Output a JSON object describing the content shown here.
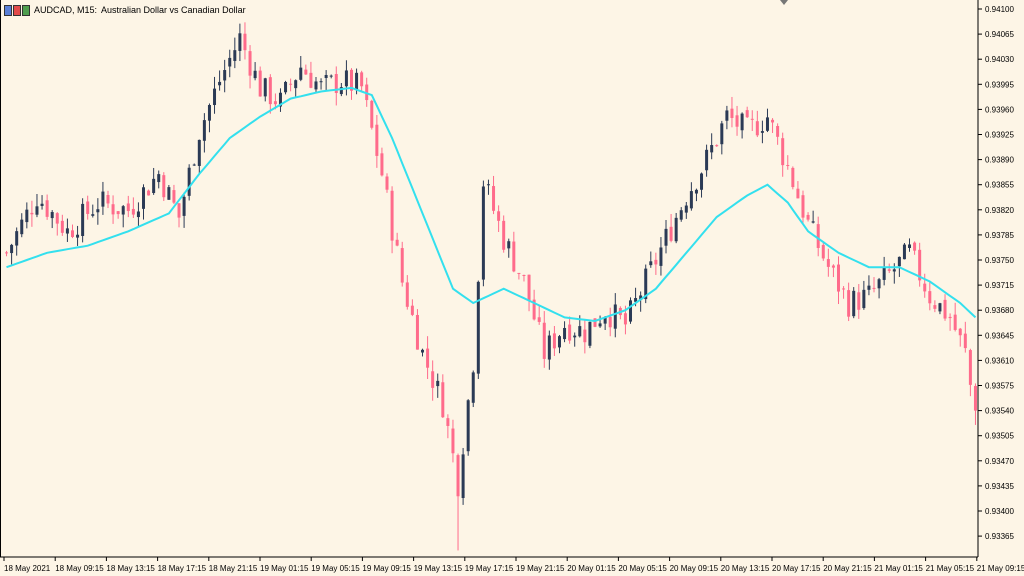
{
  "header": {
    "symbol": "AUDCAD, M15:",
    "description": "Australian Dollar vs Canadian Dollar"
  },
  "colors": {
    "background": "#fdf5e6",
    "bull": "#2b3a55",
    "bear": "#ff6b8b",
    "moving_average": "#33e0ee",
    "axis": "#000000"
  },
  "chart_data": {
    "type": "candlestick",
    "title": "",
    "grid": false,
    "ylim": [
      0.9333,
      0.94125
    ],
    "y_ticks": [
      "0.94100",
      "0.94065",
      "0.94030",
      "0.93995",
      "0.93960",
      "0.93925",
      "0.93890",
      "0.93855",
      "0.93820",
      "0.93785",
      "0.93750",
      "0.93715",
      "0.93680",
      "0.93645",
      "0.93610",
      "0.93575",
      "0.93540",
      "0.93505",
      "0.93470",
      "0.93435",
      "0.93400",
      "0.93365"
    ],
    "x_ticks": [
      "18 May 2021",
      "18 May 09:15",
      "18 May 13:15",
      "18 May 17:15",
      "18 May 21:15",
      "19 May 01:15",
      "19 May 05:15",
      "19 May 09:15",
      "19 May 13:15",
      "19 May 17:15",
      "19 May 21:15",
      "20 May 01:15",
      "20 May 05:15",
      "20 May 09:15",
      "20 May 13:15",
      "20 May 17:15",
      "20 May 21:15",
      "21 May 01:15",
      "21 May 05:15",
      "21 May 09:15"
    ],
    "close_anchors": [
      [
        0,
        0.9376
      ],
      [
        6,
        0.9384
      ],
      [
        12,
        0.9379
      ],
      [
        18,
        0.9383
      ],
      [
        24,
        0.9382
      ],
      [
        30,
        0.9387
      ],
      [
        34,
        0.9381
      ],
      [
        38,
        0.9393
      ],
      [
        42,
        0.94
      ],
      [
        46,
        0.9406
      ],
      [
        50,
        0.9399
      ],
      [
        54,
        0.9397
      ],
      [
        58,
        0.9402
      ],
      [
        62,
        0.9399
      ],
      [
        66,
        0.94
      ],
      [
        70,
        0.9399
      ],
      [
        74,
        0.9387
      ],
      [
        78,
        0.9372
      ],
      [
        82,
        0.9362
      ],
      [
        86,
        0.9355
      ],
      [
        89,
        0.9344
      ],
      [
        92,
        0.9361
      ],
      [
        94,
        0.9386
      ],
      [
        98,
        0.9378
      ],
      [
        102,
        0.9372
      ],
      [
        106,
        0.9362
      ],
      [
        110,
        0.9366
      ],
      [
        114,
        0.9365
      ],
      [
        118,
        0.9368
      ],
      [
        122,
        0.9366
      ],
      [
        126,
        0.9372
      ],
      [
        130,
        0.9378
      ],
      [
        134,
        0.9384
      ],
      [
        138,
        0.9389
      ],
      [
        142,
        0.9395
      ],
      [
        146,
        0.9393
      ],
      [
        150,
        0.9395
      ],
      [
        154,
        0.9388
      ],
      [
        158,
        0.938
      ],
      [
        162,
        0.9374
      ],
      [
        166,
        0.9369
      ],
      [
        170,
        0.937
      ],
      [
        174,
        0.9373
      ],
      [
        178,
        0.9376
      ],
      [
        182,
        0.937
      ],
      [
        186,
        0.9367
      ],
      [
        189,
        0.9362
      ],
      [
        191,
        0.9353
      ]
    ],
    "candle_count": 192,
    "moving_average_anchors": [
      [
        0,
        0.9374
      ],
      [
        8,
        0.9376
      ],
      [
        16,
        0.9377
      ],
      [
        24,
        0.9379
      ],
      [
        32,
        0.93815
      ],
      [
        38,
        0.9387
      ],
      [
        44,
        0.9392
      ],
      [
        50,
        0.9395
      ],
      [
        56,
        0.93975
      ],
      [
        62,
        0.93985
      ],
      [
        68,
        0.9399
      ],
      [
        72,
        0.9398
      ],
      [
        76,
        0.9392
      ],
      [
        80,
        0.9385
      ],
      [
        84,
        0.9378
      ],
      [
        88,
        0.9371
      ],
      [
        92,
        0.9369
      ],
      [
        98,
        0.9371
      ],
      [
        104,
        0.9369
      ],
      [
        110,
        0.9367
      ],
      [
        116,
        0.93665
      ],
      [
        122,
        0.9368
      ],
      [
        128,
        0.9371
      ],
      [
        134,
        0.9376
      ],
      [
        140,
        0.9381
      ],
      [
        146,
        0.9384
      ],
      [
        150,
        0.93855
      ],
      [
        154,
        0.9383
      ],
      [
        158,
        0.9379
      ],
      [
        164,
        0.9376
      ],
      [
        170,
        0.9374
      ],
      [
        176,
        0.9374
      ],
      [
        182,
        0.9372
      ],
      [
        188,
        0.9369
      ],
      [
        191,
        0.9367
      ]
    ],
    "spike_low": {
      "index": 89,
      "value": 0.93345
    },
    "last_drop": {
      "index": 191,
      "value": 0.9352
    }
  }
}
